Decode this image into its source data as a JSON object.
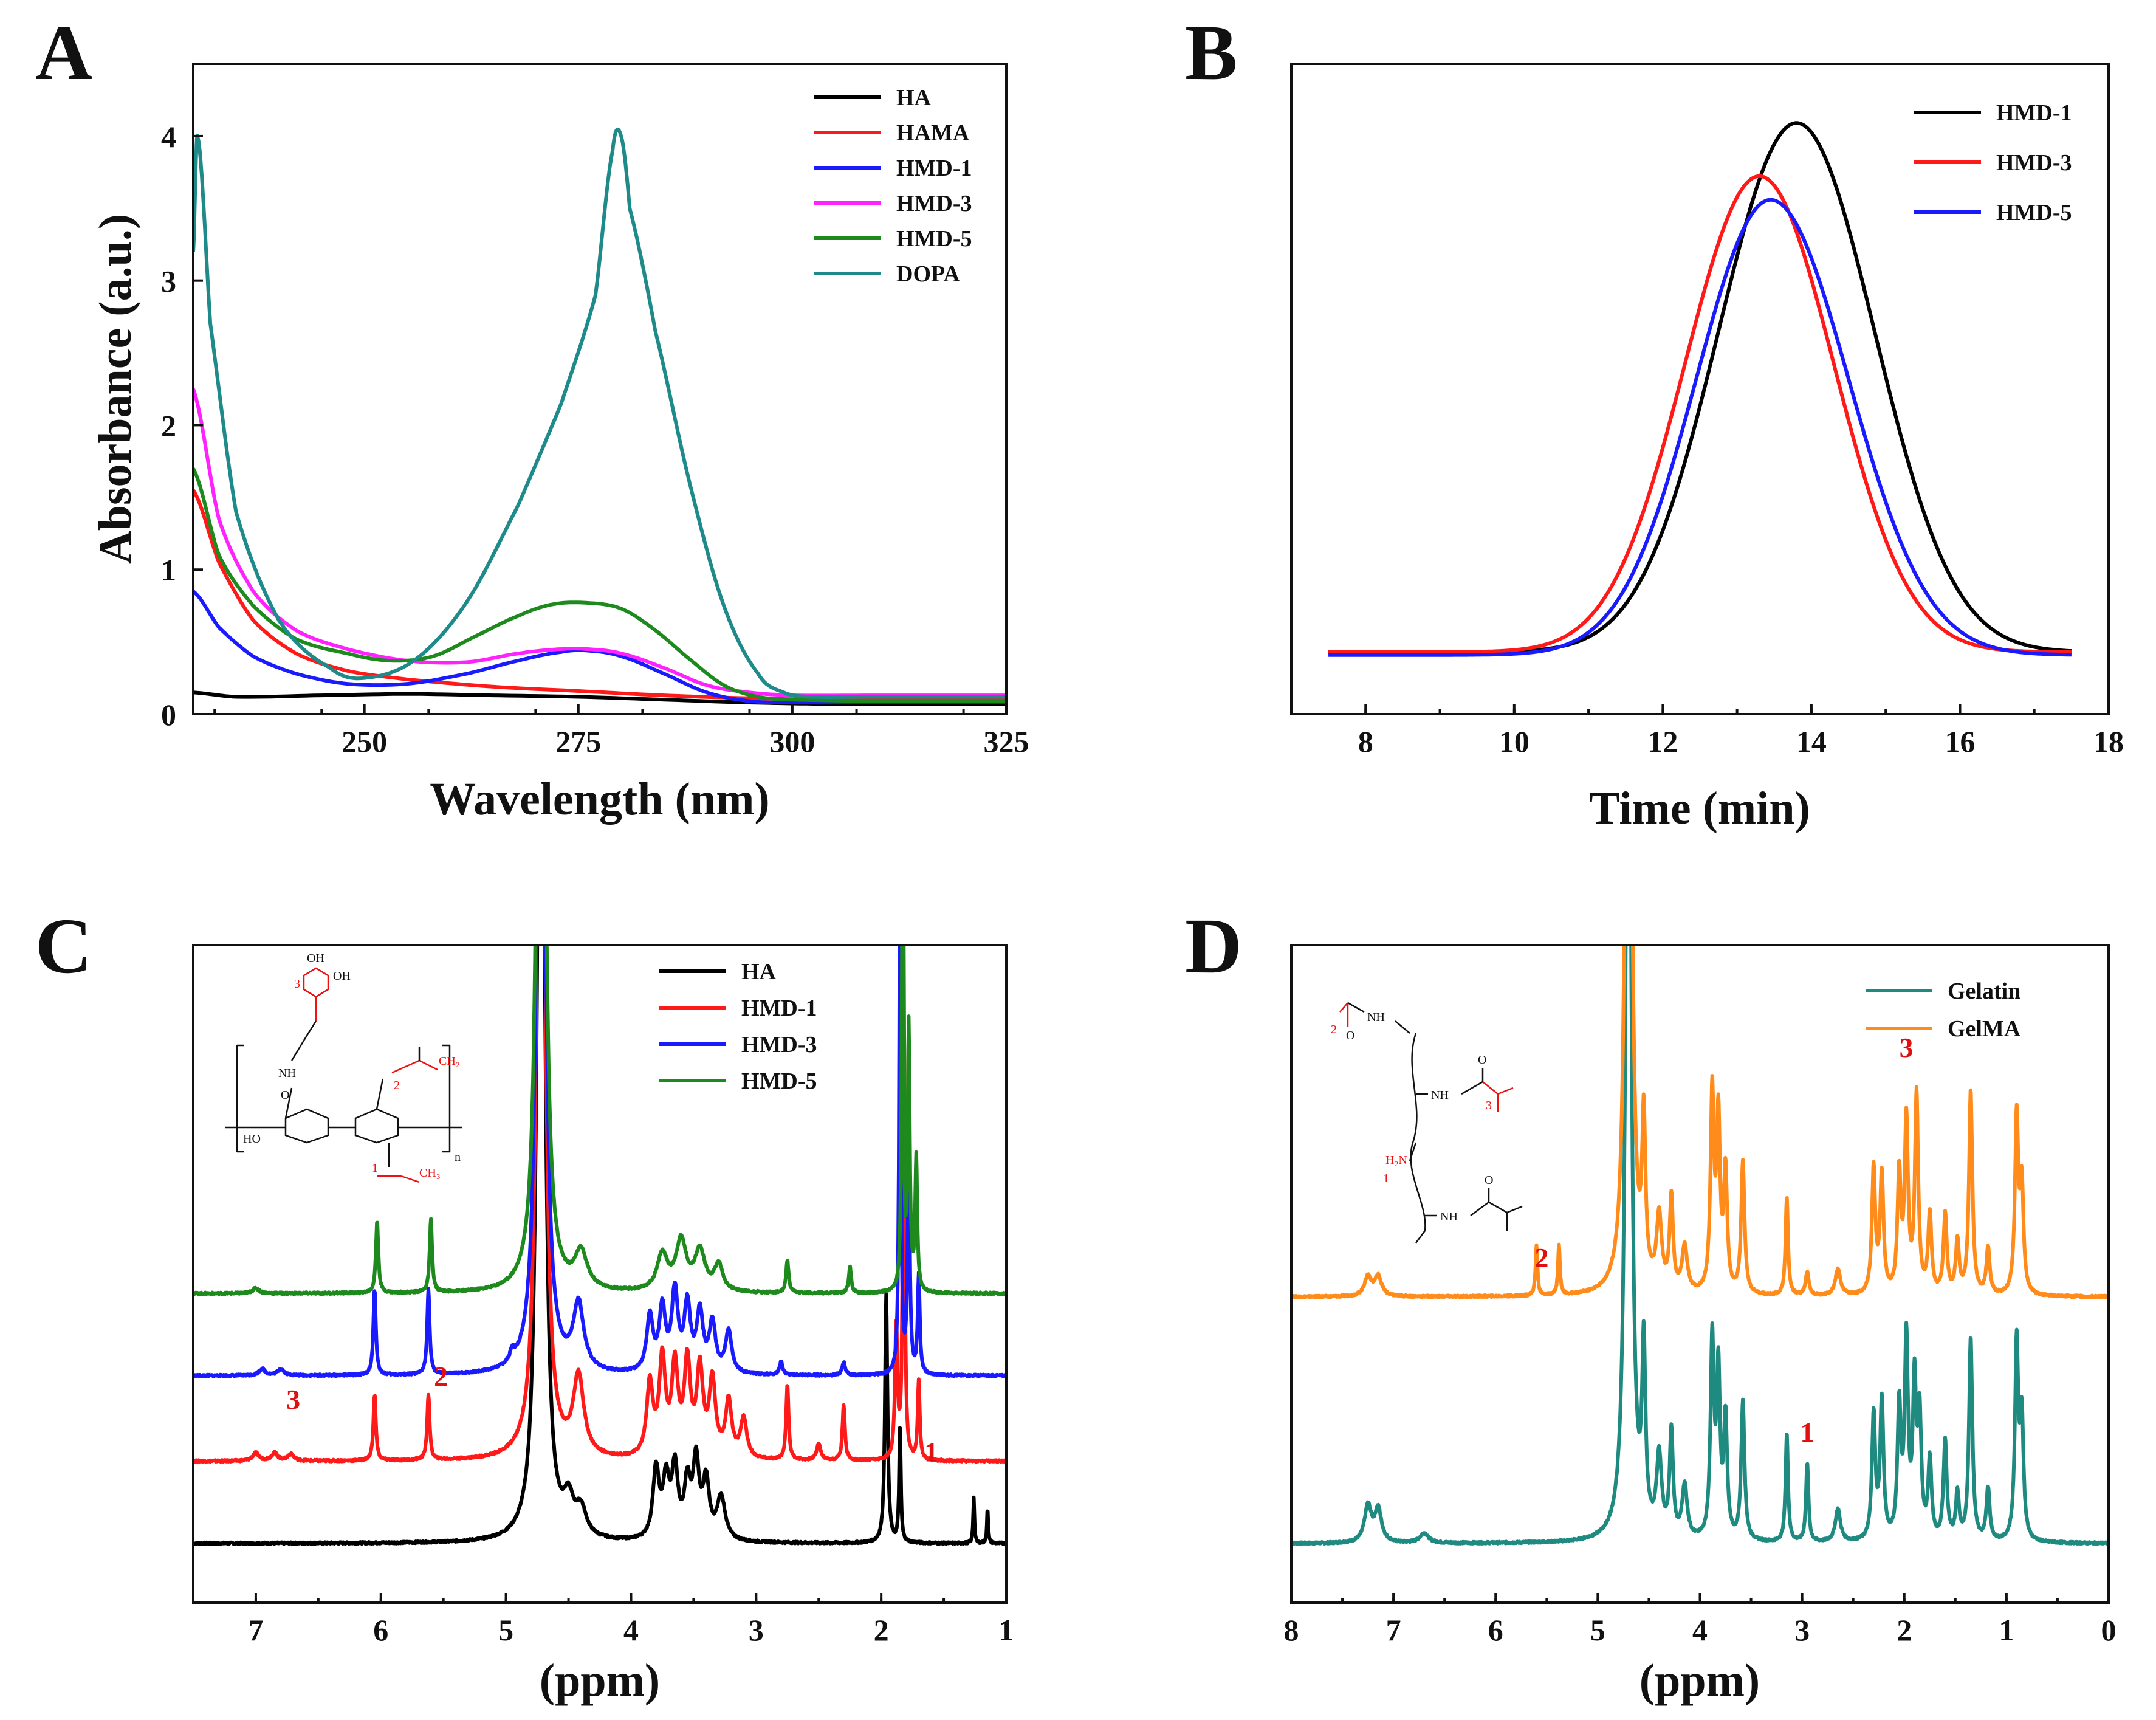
{
  "figure": {
    "panel_letters": [
      "A",
      "B",
      "C",
      "D"
    ]
  },
  "chart_data": [
    {
      "panel": "A",
      "type": "line",
      "title": "",
      "xlabel": "Wavelength (nm)",
      "ylabel": "Absorbance (a.u.)",
      "xlim": [
        230,
        325
      ],
      "ylim": [
        0,
        4.5
      ],
      "xticks": [
        250,
        275,
        300,
        325
      ],
      "yticks": [
        0,
        1,
        2,
        3,
        4
      ],
      "legend_position": "top-right",
      "series": [
        {
          "name": "HA",
          "color": "#000000",
          "x": [
            230,
            235,
            245,
            255,
            265,
            275,
            285,
            295,
            305,
            315,
            325
          ],
          "y": [
            0.15,
            0.12,
            0.13,
            0.14,
            0.13,
            0.12,
            0.1,
            0.08,
            0.07,
            0.07,
            0.07
          ]
        },
        {
          "name": "HAMA",
          "color": "#ff1a1a",
          "x": [
            230,
            233,
            237,
            242,
            248,
            255,
            265,
            275,
            285,
            295,
            305,
            315,
            325
          ],
          "y": [
            1.55,
            1.05,
            0.65,
            0.42,
            0.3,
            0.24,
            0.19,
            0.16,
            0.13,
            0.11,
            0.1,
            0.1,
            0.1
          ]
        },
        {
          "name": "HMD-1",
          "color": "#1a1aff",
          "x": [
            230,
            233,
            237,
            242,
            248,
            255,
            262,
            268,
            273,
            276,
            280,
            285,
            290,
            295,
            300,
            310,
            325
          ],
          "y": [
            0.85,
            0.6,
            0.4,
            0.28,
            0.21,
            0.21,
            0.28,
            0.37,
            0.43,
            0.44,
            0.4,
            0.28,
            0.15,
            0.09,
            0.08,
            0.08,
            0.08
          ]
        },
        {
          "name": "HMD-3",
          "color": "#ff22ff",
          "x": [
            230,
            233,
            237,
            242,
            248,
            255,
            262,
            268,
            273,
            276,
            280,
            285,
            290,
            295,
            300,
            310,
            325
          ],
          "y": [
            2.25,
            1.35,
            0.85,
            0.58,
            0.45,
            0.37,
            0.36,
            0.42,
            0.45,
            0.45,
            0.42,
            0.32,
            0.2,
            0.15,
            0.13,
            0.13,
            0.13
          ]
        },
        {
          "name": "HMD-5",
          "color": "#1e8a1e",
          "x": [
            230,
            233,
            237,
            242,
            248,
            253,
            258,
            263,
            268,
            272,
            276,
            280,
            284,
            288,
            292,
            296,
            300,
            310,
            325
          ],
          "y": [
            1.7,
            1.1,
            0.75,
            0.52,
            0.42,
            0.37,
            0.4,
            0.54,
            0.68,
            0.76,
            0.77,
            0.73,
            0.58,
            0.38,
            0.2,
            0.12,
            0.1,
            0.09,
            0.09
          ]
        },
        {
          "name": "DOPA",
          "color": "#1f8a8a",
          "x": [
            230,
            230.5,
            232,
            235,
            240,
            246,
            250,
            256,
            262,
            268,
            273,
            277,
            279,
            280,
            281,
            284,
            288,
            292,
            296,
            299,
            302,
            310,
            325
          ],
          "y": [
            3.2,
            4.0,
            2.7,
            1.4,
            0.65,
            0.32,
            0.25,
            0.38,
            0.78,
            1.45,
            2.15,
            2.9,
            3.9,
            4.0,
            3.5,
            2.65,
            1.6,
            0.75,
            0.28,
            0.15,
            0.12,
            0.12,
            0.12
          ]
        }
      ]
    },
    {
      "panel": "B",
      "type": "line",
      "title": "",
      "xlabel": "Time (min)",
      "ylabel": "",
      "xlim": [
        7,
        18
      ],
      "ylim": [
        0,
        1.1
      ],
      "xticks": [
        8,
        10,
        12,
        14,
        16,
        18
      ],
      "yticks": [],
      "legend_position": "top-right",
      "series": [
        {
          "name": "HMD-1",
          "color": "#000000",
          "center": 13.8,
          "sigma_left": 1.05,
          "sigma_right": 1.05,
          "baseline": 0.105,
          "peak": 1.0
        },
        {
          "name": "HMD-3",
          "color": "#ff1a1a",
          "center": 13.3,
          "sigma_left": 1.0,
          "sigma_right": 1.0,
          "baseline": 0.105,
          "peak": 0.91
        },
        {
          "name": "HMD-5",
          "color": "#1a1aff",
          "center": 13.45,
          "sigma_left": 1.0,
          "sigma_right": 1.05,
          "baseline": 0.1,
          "peak": 0.87
        }
      ],
      "x_range": [
        7.5,
        17.5
      ]
    },
    {
      "panel": "C",
      "type": "line",
      "title": "",
      "xlabel": "(ppm)",
      "ylabel": "",
      "xlim": [
        7.5,
        1.0
      ],
      "ylim": [
        0,
        10
      ],
      "xticks": [
        7,
        6,
        5,
        4,
        3,
        2,
        1
      ],
      "yticks": [],
      "legend_position": "top-right",
      "series": [
        {
          "name": "HA",
          "color": "#000000",
          "offset": 0.0,
          "peaks": [
            [
              4.72,
              18,
              0.03
            ],
            [
              4.5,
              0.5,
              0.05
            ],
            [
              4.4,
              0.4,
              0.05
            ],
            [
              3.8,
              1.05,
              0.03
            ],
            [
              3.72,
              0.85,
              0.03
            ],
            [
              3.65,
              1.05,
              0.03
            ],
            [
              3.55,
              0.8,
              0.03
            ],
            [
              3.48,
              1.15,
              0.03
            ],
            [
              3.4,
              0.85,
              0.03
            ],
            [
              3.28,
              0.65,
              0.04
            ],
            [
              1.96,
              3.8,
              0.012
            ],
            [
              1.85,
              1.8,
              0.008
            ],
            [
              1.26,
              0.7,
              0.006
            ],
            [
              1.15,
              0.55,
              0.006
            ]
          ]
        },
        {
          "name": "HMD-1",
          "color": "#ff1a1a",
          "offset": 1.25,
          "peaks": [
            [
              7.0,
              0.12,
              0.03
            ],
            [
              6.85,
              0.12,
              0.03
            ],
            [
              6.72,
              0.1,
              0.03
            ],
            [
              6.05,
              1.0,
              0.012
            ],
            [
              5.62,
              1.0,
              0.012
            ],
            [
              4.72,
              18,
              0.03
            ],
            [
              4.42,
              1.2,
              0.05
            ],
            [
              3.85,
              1.1,
              0.03
            ],
            [
              3.75,
              1.45,
              0.03
            ],
            [
              3.65,
              1.35,
              0.03
            ],
            [
              3.55,
              1.4,
              0.03
            ],
            [
              3.45,
              1.3,
              0.03
            ],
            [
              3.35,
              1.15,
              0.03
            ],
            [
              3.22,
              0.85,
              0.03
            ],
            [
              3.1,
              0.6,
              0.03
            ],
            [
              2.75,
              1.15,
              0.012
            ],
            [
              2.3,
              0.85,
              0.012
            ],
            [
              2.5,
              0.25,
              0.02
            ],
            [
              1.88,
              2.0,
              0.012
            ],
            [
              1.82,
              8.0,
              0.008
            ],
            [
              1.7,
              1.2,
              0.01
            ]
          ]
        },
        {
          "name": "HMD-3",
          "color": "#1a1aff",
          "offset": 2.55,
          "peaks": [
            [
              6.95,
              0.1,
              0.03
            ],
            [
              6.8,
              0.1,
              0.03
            ],
            [
              6.05,
              1.3,
              0.012
            ],
            [
              5.62,
              1.3,
              0.012
            ],
            [
              4.95,
              0.15,
              0.02
            ],
            [
              4.72,
              18,
              0.03
            ],
            [
              4.42,
              1.0,
              0.05
            ],
            [
              3.85,
              0.85,
              0.03
            ],
            [
              3.75,
              0.95,
              0.03
            ],
            [
              3.65,
              1.2,
              0.03
            ],
            [
              3.55,
              1.0,
              0.03
            ],
            [
              3.45,
              0.9,
              0.03
            ],
            [
              3.35,
              0.75,
              0.03
            ],
            [
              3.22,
              0.65,
              0.03
            ],
            [
              2.8,
              0.2,
              0.015
            ],
            [
              2.3,
              0.2,
              0.015
            ],
            [
              1.85,
              8.0,
              0.008
            ],
            [
              1.78,
              3.5,
              0.01
            ],
            [
              1.7,
              1.5,
              0.01
            ]
          ]
        },
        {
          "name": "HMD-5",
          "color": "#1e8a1e",
          "offset": 3.8,
          "peaks": [
            [
              7.0,
              0.08,
              0.03
            ],
            [
              6.03,
              1.1,
              0.012
            ],
            [
              5.6,
              1.1,
              0.012
            ],
            [
              4.72,
              18,
              0.03
            ],
            [
              4.4,
              0.55,
              0.06
            ],
            [
              3.75,
              0.55,
              0.05
            ],
            [
              3.6,
              0.75,
              0.05
            ],
            [
              3.45,
              0.6,
              0.05
            ],
            [
              3.3,
              0.4,
              0.04
            ],
            [
              2.75,
              0.5,
              0.012
            ],
            [
              2.25,
              0.4,
              0.012
            ],
            [
              1.83,
              6.5,
              0.008
            ],
            [
              1.78,
              4.0,
              0.01
            ],
            [
              1.72,
              2.0,
              0.01
            ]
          ]
        }
      ],
      "annotations": [
        {
          "text": "3",
          "ppm": 6.7,
          "level": 2.95
        },
        {
          "text": "2",
          "ppm": 5.52,
          "level": 3.3
        },
        {
          "text": "1",
          "ppm": 1.6,
          "level": 2.15
        }
      ],
      "structure_labels": {
        "oh_top": "OH",
        "oh_side": "OH",
        "nh": "NH",
        "o": "O",
        "ho": "HO",
        "n": "n",
        "num1": "1",
        "num2": "2",
        "num3": "3",
        "ch2": "CH₂",
        "ch3": "CH₃"
      }
    },
    {
      "panel": "D",
      "type": "line",
      "title": "",
      "xlabel": "(ppm)",
      "ylabel": "",
      "xlim": [
        8,
        0
      ],
      "ylim": [
        0,
        10
      ],
      "xticks": [
        8,
        7,
        6,
        5,
        4,
        3,
        2,
        1,
        0
      ],
      "yticks": [],
      "legend_position": "top-right",
      "series": [
        {
          "name": "Gelatin",
          "color": "#1f8a80",
          "offset": 0.0,
          "peaks": [
            [
              7.25,
              0.55,
              0.04
            ],
            [
              7.15,
              0.5,
              0.04
            ],
            [
              6.7,
              0.15,
              0.05
            ],
            [
              4.7,
              16,
              0.03
            ],
            [
              4.55,
              2.7,
              0.02
            ],
            [
              4.4,
              1.2,
              0.03
            ],
            [
              4.28,
              1.6,
              0.02
            ],
            [
              4.15,
              0.8,
              0.03
            ],
            [
              3.88,
              3.0,
              0.02
            ],
            [
              3.82,
              2.5,
              0.02
            ],
            [
              3.75,
              1.8,
              0.02
            ],
            [
              3.58,
              2.1,
              0.02
            ],
            [
              3.15,
              1.65,
              0.015
            ],
            [
              2.95,
              1.2,
              0.015
            ],
            [
              2.65,
              0.5,
              0.03
            ],
            [
              2.3,
              1.9,
              0.02
            ],
            [
              2.22,
              2.1,
              0.02
            ],
            [
              2.05,
              2.0,
              0.02
            ],
            [
              1.98,
              3.0,
              0.02
            ],
            [
              1.9,
              2.3,
              0.02
            ],
            [
              1.85,
              1.8,
              0.02
            ],
            [
              1.75,
              1.2,
              0.02
            ],
            [
              1.6,
              1.5,
              0.02
            ],
            [
              1.48,
              0.7,
              0.02
            ],
            [
              1.35,
              3.1,
              0.02
            ],
            [
              1.18,
              0.8,
              0.02
            ],
            [
              0.9,
              3.0,
              0.02
            ],
            [
              0.85,
              1.8,
              0.02
            ]
          ]
        },
        {
          "name": "GelMA",
          "color": "#ff8c1a",
          "offset": 3.75,
          "peaks": [
            [
              7.25,
              0.3,
              0.04
            ],
            [
              7.15,
              0.3,
              0.04
            ],
            [
              5.6,
              0.75,
              0.012
            ],
            [
              5.38,
              0.75,
              0.012
            ],
            [
              4.7,
              16,
              0.03
            ],
            [
              4.55,
              2.4,
              0.02
            ],
            [
              4.4,
              1.1,
              0.03
            ],
            [
              4.28,
              1.4,
              0.02
            ],
            [
              4.15,
              0.7,
              0.03
            ],
            [
              3.88,
              3.0,
              0.02
            ],
            [
              3.82,
              2.6,
              0.02
            ],
            [
              3.75,
              1.8,
              0.02
            ],
            [
              3.58,
              2.0,
              0.02
            ],
            [
              3.15,
              1.5,
              0.015
            ],
            [
              2.95,
              0.35,
              0.02
            ],
            [
              2.65,
              0.4,
              0.03
            ],
            [
              2.3,
              1.9,
              0.02
            ],
            [
              2.22,
              1.8,
              0.02
            ],
            [
              2.05,
              1.8,
              0.02
            ],
            [
              1.98,
              2.6,
              0.02
            ],
            [
              1.88,
              3.0,
              0.02
            ],
            [
              1.75,
              1.2,
              0.02
            ],
            [
              1.6,
              1.2,
              0.02
            ],
            [
              1.48,
              0.8,
              0.02
            ],
            [
              1.35,
              3.1,
              0.02
            ],
            [
              1.18,
              0.7,
              0.02
            ],
            [
              0.9,
              2.7,
              0.02
            ],
            [
              0.85,
              1.6,
              0.02
            ]
          ]
        }
      ],
      "annotations": [
        {
          "text": "2",
          "ppm": 5.55,
          "level": 5.1
        },
        {
          "text": "1",
          "ppm": 2.95,
          "level": 2.45
        },
        {
          "text": "3",
          "ppm": 1.98,
          "level": 8.3
        }
      ],
      "structure_labels": {
        "nh1": "NH",
        "nh2": "NH",
        "nh3": "NH",
        "h2n": "H₂N",
        "o1": "O",
        "o2": "O",
        "o3": "O",
        "num1": "1",
        "num2": "2",
        "num3": "3"
      }
    }
  ]
}
